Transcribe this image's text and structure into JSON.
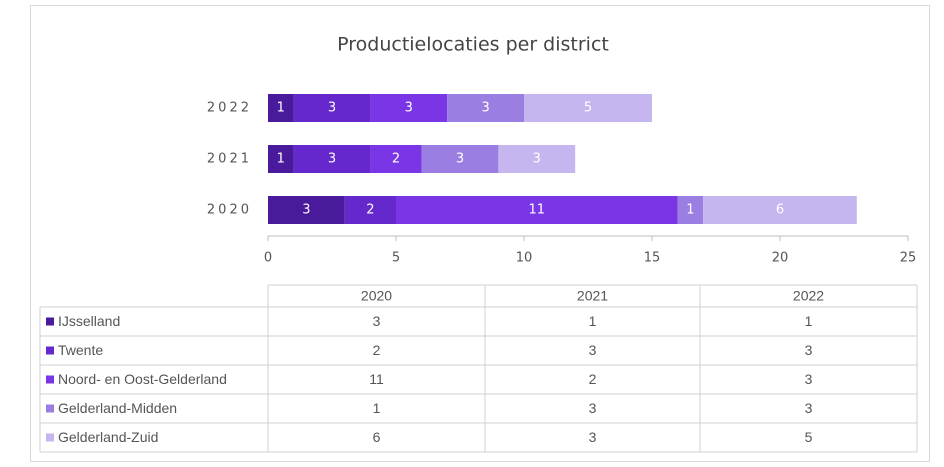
{
  "chart_data": {
    "type": "stacked-barh",
    "title": "Productielocaties per district",
    "categories": [
      "2020",
      "2021",
      "2022"
    ],
    "series": [
      {
        "name": "IJsselland",
        "color": "#4a1a9c",
        "values": [
          3,
          1,
          1
        ]
      },
      {
        "name": "Twente",
        "color": "#6428cc",
        "values": [
          2,
          3,
          3
        ]
      },
      {
        "name": "Noord- en Oost-Gelderland",
        "color": "#7a36e6",
        "values": [
          11,
          2,
          3
        ]
      },
      {
        "name": "Gelderland-Midden",
        "color": "#9a7ee2",
        "values": [
          1,
          3,
          3
        ]
      },
      {
        "name": "Gelderland-Zuid",
        "color": "#c6b6f0",
        "values": [
          6,
          3,
          5
        ]
      }
    ],
    "xlim": [
      0,
      25
    ],
    "xticks": [
      0,
      5,
      10,
      15,
      20,
      25
    ],
    "grid": false
  }
}
